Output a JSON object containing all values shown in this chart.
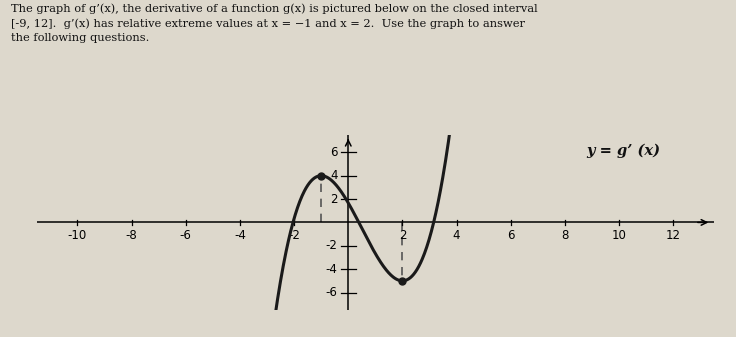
{
  "title_line1": "The graph of g’(x), the derivative of a function g(x) is pictured below on the closed interval",
  "title_line2": "[-9, 12].  g’(x) has relative extreme values at x = −1 and x = 2.  Use the graph to answer",
  "title_line3": "the following questions.",
  "label": "y = g’ (x)",
  "xlim": [
    -11.5,
    13.5
  ],
  "ylim": [
    -7.5,
    7.5
  ],
  "xticks": [
    -10,
    -8,
    -6,
    -4,
    -2,
    2,
    4,
    6,
    8,
    10,
    12
  ],
  "yticks": [
    -6,
    -4,
    -2,
    2,
    4,
    6
  ],
  "curve_color": "#1a1a1a",
  "line_width": 2.2,
  "background_color": "#ddd8cc",
  "text_color": "#111111",
  "local_max_x": -1,
  "local_min_x": 2,
  "x_start": -9,
  "x_end": 12,
  "A": 0.6667,
  "B": -1.0,
  "C": -4.0,
  "D": 1.6667,
  "dashed_color": "#555555"
}
